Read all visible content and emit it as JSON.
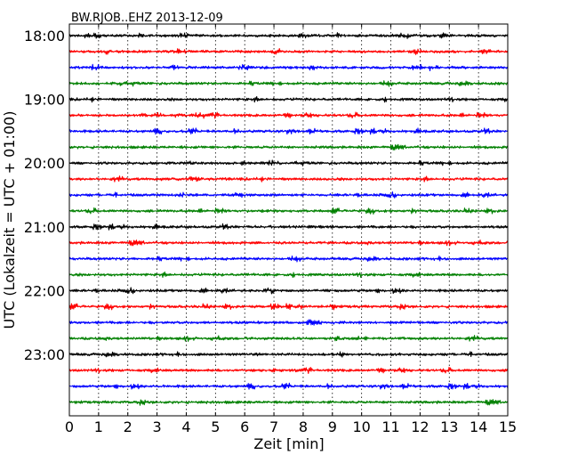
{
  "chart_data": {
    "type": "line",
    "title": "BW.RJOB..EHZ 2013-12-09",
    "xlabel": "Zeit  [min]",
    "ylabel": "UTC (Lokalzeit = UTC + 01:00)",
    "xlim": [
      0,
      15
    ],
    "x_ticks": [
      "0",
      "1",
      "2",
      "3",
      "4",
      "5",
      "6",
      "7",
      "8",
      "9",
      "10",
      "11",
      "12",
      "13",
      "14",
      "15"
    ],
    "y_tick_labels": [
      "18:00",
      "19:00",
      "20:00",
      "21:00",
      "22:00",
      "23:00"
    ],
    "grid": "vertical dotted at each minute",
    "line_colors": [
      "#000000",
      "#ff0000",
      "#0000ff",
      "#008000"
    ],
    "traces": [
      {
        "start": "18:00",
        "color": "#000000"
      },
      {
        "start": "18:15",
        "color": "#ff0000"
      },
      {
        "start": "18:30",
        "color": "#0000ff"
      },
      {
        "start": "18:45",
        "color": "#008000"
      },
      {
        "start": "19:00",
        "color": "#000000"
      },
      {
        "start": "19:15",
        "color": "#ff0000"
      },
      {
        "start": "19:30",
        "color": "#0000ff"
      },
      {
        "start": "19:45",
        "color": "#008000"
      },
      {
        "start": "20:00",
        "color": "#000000"
      },
      {
        "start": "20:15",
        "color": "#ff0000"
      },
      {
        "start": "20:30",
        "color": "#0000ff"
      },
      {
        "start": "20:45",
        "color": "#008000"
      },
      {
        "start": "21:00",
        "color": "#000000"
      },
      {
        "start": "21:15",
        "color": "#ff0000"
      },
      {
        "start": "21:30",
        "color": "#0000ff"
      },
      {
        "start": "21:45",
        "color": "#008000"
      },
      {
        "start": "22:00",
        "color": "#000000"
      },
      {
        "start": "22:15",
        "color": "#ff0000"
      },
      {
        "start": "22:30",
        "color": "#0000ff"
      },
      {
        "start": "22:45",
        "color": "#008000"
      },
      {
        "start": "23:00",
        "color": "#000000"
      },
      {
        "start": "23:15",
        "color": "#ff0000"
      },
      {
        "start": "23:30",
        "color": "#0000ff"
      },
      {
        "start": "23:45",
        "color": "#008000"
      }
    ]
  }
}
